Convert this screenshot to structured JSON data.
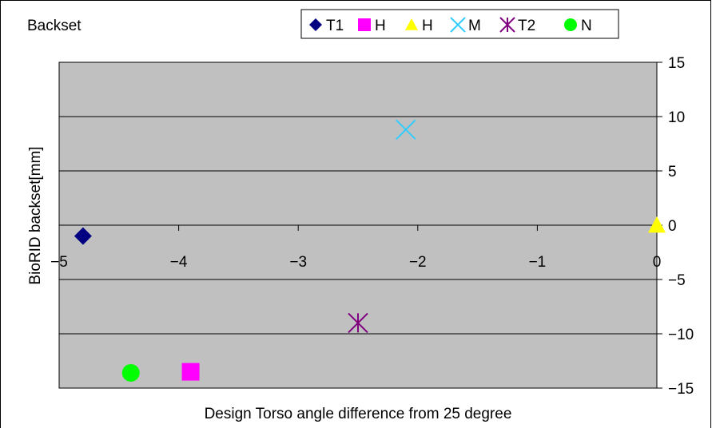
{
  "chart_data": {
    "type": "scatter",
    "title": "Backset",
    "xlabel": "Design Torso angle difference from 25 degree",
    "ylabel": "BioRID backset[mm]",
    "xlim": [
      -5,
      0
    ],
    "ylim": [
      -15,
      15
    ],
    "x_ticks": [
      -5,
      -4,
      -3,
      -2,
      -1,
      0
    ],
    "y_ticks": [
      15,
      10,
      5,
      0,
      -5,
      -10,
      -15
    ],
    "x_tick_labels": [
      "−5",
      "−4",
      "−3",
      "−2",
      "−1",
      "0"
    ],
    "y_tick_labels": [
      "15",
      "10",
      "5",
      "0",
      "−5",
      "−10",
      "−15"
    ],
    "grid": "horizontal",
    "plot_background": "#c0c0c0",
    "legend_position": "top",
    "series": [
      {
        "name": "T1",
        "marker": "diamond",
        "color": "#000080",
        "x": [
          -4.8
        ],
        "y": [
          -1.0
        ]
      },
      {
        "name": "H",
        "marker": "square",
        "color": "#ff00ff",
        "x": [
          -3.9
        ],
        "y": [
          -13.5
        ]
      },
      {
        "name": "H",
        "marker": "triangle",
        "color": "#ffff00",
        "x": [
          0.0
        ],
        "y": [
          0.0
        ]
      },
      {
        "name": "M",
        "marker": "x",
        "color": "#33ccff",
        "x": [
          -2.1
        ],
        "y": [
          8.8
        ]
      },
      {
        "name": "T2",
        "marker": "asterisk",
        "color": "#800080",
        "x": [
          -2.5
        ],
        "y": [
          -9.0
        ]
      },
      {
        "name": "N",
        "marker": "circle",
        "color": "#00ff00",
        "x": [
          -4.4
        ],
        "y": [
          -13.6
        ]
      }
    ]
  }
}
